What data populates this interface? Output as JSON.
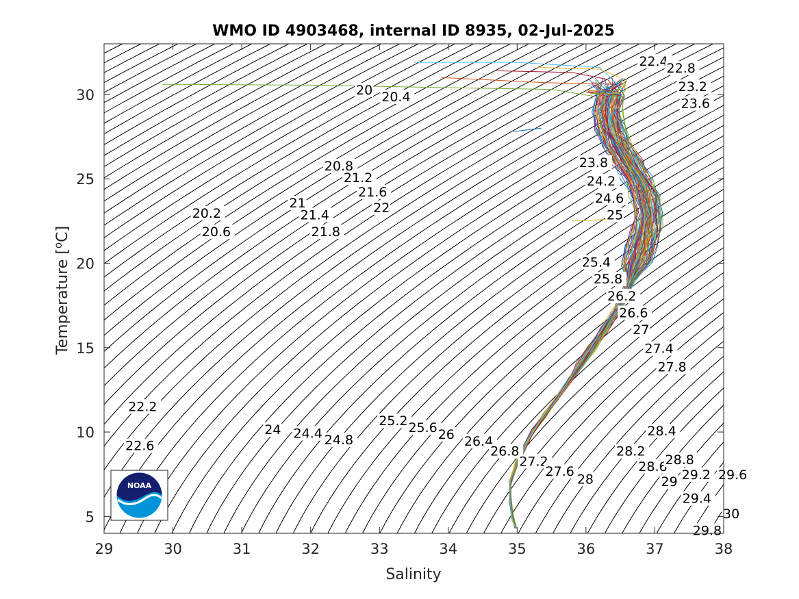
{
  "logo": {
    "text": "NOAA"
  },
  "chart_data": {
    "type": "line",
    "title": "WMO ID 4903468, internal ID 8935, 02-Jul-2025",
    "xlabel": "Salinity",
    "ylabel": "Temperature [",
    "ylabel_sup": "o",
    "ylabel_unit": "C]",
    "xlim": [
      29,
      38
    ],
    "ylim": [
      4,
      33
    ],
    "xticks": [
      "29",
      "30",
      "31",
      "32",
      "33",
      "34",
      "35",
      "36",
      "37",
      "38"
    ],
    "yticks": [
      "5",
      "10",
      "15",
      "20",
      "25",
      "30"
    ],
    "grid": false,
    "density_contour_labels": [
      {
        "text": "20",
        "s": 32.66,
        "t": 30.0
      },
      {
        "text": "20.4",
        "s": 33.03,
        "t": 29.6
      },
      {
        "text": "20.8",
        "s": 32.2,
        "t": 25.5
      },
      {
        "text": "21.2",
        "s": 32.48,
        "t": 24.8
      },
      {
        "text": "21.6",
        "s": 32.69,
        "t": 23.96
      },
      {
        "text": "22",
        "s": 32.91,
        "t": 23.03
      },
      {
        "text": "20.2",
        "s": 30.28,
        "t": 22.7
      },
      {
        "text": "20.6",
        "s": 30.42,
        "t": 21.6
      },
      {
        "text": "21",
        "s": 31.69,
        "t": 23.3
      },
      {
        "text": "21.4",
        "s": 31.85,
        "t": 22.6
      },
      {
        "text": "21.8",
        "s": 32.01,
        "t": 21.6
      },
      {
        "text": "22.2",
        "s": 29.35,
        "t": 11.25
      },
      {
        "text": "22.6",
        "s": 29.31,
        "t": 8.92
      },
      {
        "text": "22.4",
        "s": 36.77,
        "t": 31.7
      },
      {
        "text": "22.8",
        "s": 37.17,
        "t": 31.3
      },
      {
        "text": "23.2",
        "s": 37.34,
        "t": 30.2
      },
      {
        "text": "23.6",
        "s": 37.38,
        "t": 29.2
      },
      {
        "text": "23.8",
        "s": 35.9,
        "t": 25.7
      },
      {
        "text": "24.2",
        "s": 36.01,
        "t": 24.6
      },
      {
        "text": "24.6",
        "s": 36.13,
        "t": 23.6
      },
      {
        "text": "25",
        "s": 36.3,
        "t": 22.6
      },
      {
        "text": "25.4",
        "s": 35.94,
        "t": 19.8
      },
      {
        "text": "25.8",
        "s": 36.11,
        "t": 18.8
      },
      {
        "text": "26.2",
        "s": 36.31,
        "t": 17.8
      },
      {
        "text": "26.6",
        "s": 36.48,
        "t": 16.8
      },
      {
        "text": "27",
        "s": 36.68,
        "t": 15.8
      },
      {
        "text": "27.4",
        "s": 36.85,
        "t": 14.68
      },
      {
        "text": "27.8",
        "s": 37.04,
        "t": 13.6
      },
      {
        "text": "24",
        "s": 31.33,
        "t": 9.88
      },
      {
        "text": "24.4",
        "s": 31.75,
        "t": 9.66
      },
      {
        "text": "24.8",
        "s": 32.2,
        "t": 9.27
      },
      {
        "text": "25.2",
        "s": 32.99,
        "t": 10.4
      },
      {
        "text": "25.6",
        "s": 33.42,
        "t": 10.0
      },
      {
        "text": "26",
        "s": 33.85,
        "t": 9.6
      },
      {
        "text": "26.4",
        "s": 34.23,
        "t": 9.2
      },
      {
        "text": "26.8",
        "s": 34.61,
        "t": 8.6
      },
      {
        "text": "27.2",
        "s": 35.03,
        "t": 8.0
      },
      {
        "text": "27.6",
        "s": 35.41,
        "t": 7.4
      },
      {
        "text": "28",
        "s": 35.87,
        "t": 6.94
      },
      {
        "text": "28.2",
        "s": 36.44,
        "t": 8.6
      },
      {
        "text": "28.4",
        "s": 36.89,
        "t": 9.8
      },
      {
        "text": "28.6",
        "s": 36.76,
        "t": 7.7
      },
      {
        "text": "28.8",
        "s": 37.15,
        "t": 8.1
      },
      {
        "text": "29",
        "s": 37.09,
        "t": 6.8
      },
      {
        "text": "29.2",
        "s": 37.39,
        "t": 7.2
      },
      {
        "text": "29.4",
        "s": 37.4,
        "t": 5.8
      },
      {
        "text": "29.6",
        "s": 37.92,
        "t": 7.2
      },
      {
        "text": "30",
        "s": 37.99,
        "t": 4.9
      },
      {
        "text": "29.8",
        "s": 37.55,
        "t": 3.9
      }
    ],
    "mean_profile": [
      {
        "s": 34.98,
        "t": 4.3
      },
      {
        "s": 34.93,
        "t": 5.0
      },
      {
        "s": 34.9,
        "t": 6.0
      },
      {
        "s": 34.9,
        "t": 7.0
      },
      {
        "s": 34.98,
        "t": 8.0
      },
      {
        "s": 35.1,
        "t": 9.0
      },
      {
        "s": 35.22,
        "t": 10.0
      },
      {
        "s": 35.4,
        "t": 11.0
      },
      {
        "s": 35.58,
        "t": 12.0
      },
      {
        "s": 35.75,
        "t": 13.0
      },
      {
        "s": 35.92,
        "t": 14.0
      },
      {
        "s": 36.08,
        "t": 15.0
      },
      {
        "s": 36.25,
        "t": 16.0
      },
      {
        "s": 36.42,
        "t": 17.0
      },
      {
        "s": 36.55,
        "t": 18.0
      },
      {
        "s": 36.65,
        "t": 19.0
      },
      {
        "s": 36.73,
        "t": 20.0
      },
      {
        "s": 36.8,
        "t": 21.0
      },
      {
        "s": 36.87,
        "t": 22.0
      },
      {
        "s": 36.9,
        "t": 23.0
      },
      {
        "s": 36.85,
        "t": 24.0
      },
      {
        "s": 36.75,
        "t": 25.0
      },
      {
        "s": 36.6,
        "t": 26.0
      },
      {
        "s": 36.45,
        "t": 27.0
      },
      {
        "s": 36.35,
        "t": 28.0
      },
      {
        "s": 36.3,
        "t": 29.0
      },
      {
        "s": 36.35,
        "t": 30.0
      }
    ],
    "surface_outliers": [
      {
        "points": [
          {
            "s": 29.85,
            "t": 30.6
          },
          {
            "s": 32.0,
            "t": 30.55
          },
          {
            "s": 34.0,
            "t": 30.4
          },
          {
            "s": 35.5,
            "t": 30.3
          },
          {
            "s": 36.1,
            "t": 29.9
          }
        ],
        "color": "#77AC30"
      },
      {
        "points": [
          {
            "s": 33.5,
            "t": 31.9
          },
          {
            "s": 35.0,
            "t": 31.9
          },
          {
            "s": 36.2,
            "t": 31.6
          },
          {
            "s": 36.55,
            "t": 30.2
          }
        ],
        "color": "#4DBEEE"
      },
      {
        "points": [
          {
            "s": 35.3,
            "t": 31.6
          },
          {
            "s": 36.2,
            "t": 31.5
          },
          {
            "s": 36.5,
            "t": 31.0
          }
        ],
        "color": "#EDB120"
      },
      {
        "points": [
          {
            "s": 33.9,
            "t": 31.0
          },
          {
            "s": 35.4,
            "t": 30.7
          },
          {
            "s": 36.4,
            "t": 30.6
          }
        ],
        "color": "#D95319"
      },
      {
        "points": [
          {
            "s": 34.7,
            "t": 31.4
          },
          {
            "s": 35.8,
            "t": 31.3
          },
          {
            "s": 36.3,
            "t": 30.9
          }
        ],
        "color": "#A2142F"
      },
      {
        "points": [
          {
            "s": 34.95,
            "t": 27.8
          },
          {
            "s": 35.35,
            "t": 28.0
          }
        ],
        "color": "#0072BD"
      },
      {
        "points": [
          {
            "s": 35.8,
            "t": 22.5
          },
          {
            "s": 36.3,
            "t": 22.6
          }
        ],
        "color": "#EDB120"
      }
    ]
  }
}
